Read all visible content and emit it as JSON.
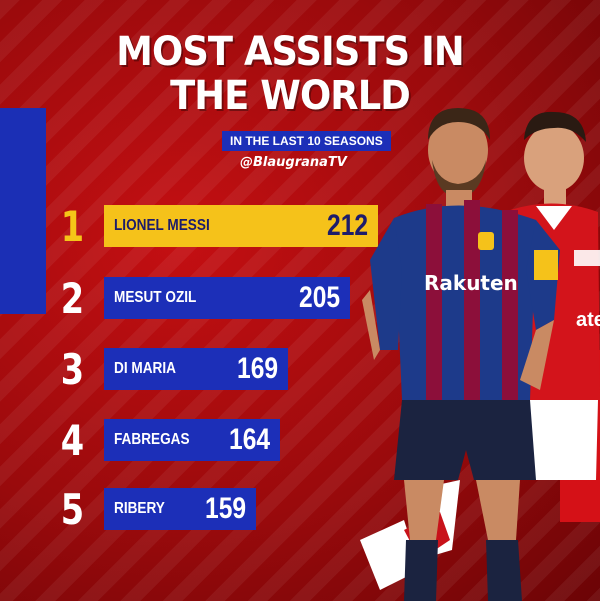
{
  "title_line1": "MOST ASSISTS IN",
  "title_line2": "THE WORLD",
  "subtitle": "IN THE LAST 10 SEASONS",
  "handle": "@BlaugranaTV",
  "rankings": [
    {
      "rank": "1",
      "name": "LIONEL MESSI",
      "assists": "212"
    },
    {
      "rank": "2",
      "name": "MESUT OZIL",
      "assists": "205"
    },
    {
      "rank": "3",
      "name": "DI MARIA",
      "assists": "169"
    },
    {
      "rank": "4",
      "name": "FABREGAS",
      "assists": "164"
    },
    {
      "rank": "5",
      "name": "RIBERY",
      "assists": "159"
    }
  ],
  "shirt_sponsor_1": "Rakuten",
  "shirt_sponsor_2": "ates",
  "colors": {
    "background": "#a8090d",
    "blue_accent": "#1c2fb8",
    "gold_accent": "#f5c21a",
    "text": "#ffffff"
  }
}
